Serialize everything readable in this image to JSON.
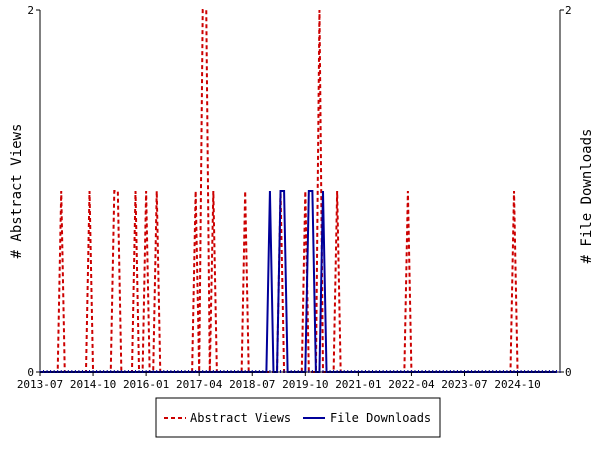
{
  "chart_data": {
    "type": "line",
    "title": "",
    "xlabel": "",
    "ylabel_left": "# Abstract Views",
    "ylabel_right": "# File Downloads",
    "x_range": [
      "2013-07",
      "2025-10"
    ],
    "ylim": [
      0,
      2
    ],
    "y_ticks": [
      "0",
      "2"
    ],
    "x_ticks": [
      "2013-07",
      "2014-10",
      "2016-01",
      "2017-04",
      "2018-07",
      "2019-10",
      "2021-01",
      "2022-04",
      "2023-07",
      "2024-10"
    ],
    "grid": false,
    "legend_position": "bottom",
    "colors": {
      "abstract_views": "#cc0000",
      "file_downloads": "#000099",
      "axis": "#000000"
    },
    "series": [
      {
        "name": "Abstract Views",
        "axis": "left",
        "points": [
          {
            "x": "2014-01",
            "y": 1
          },
          {
            "x": "2014-09",
            "y": 1
          },
          {
            "x": "2015-04",
            "y": 1
          },
          {
            "x": "2015-05",
            "y": 1
          },
          {
            "x": "2015-10",
            "y": 1
          },
          {
            "x": "2016-01",
            "y": 1
          },
          {
            "x": "2016-04",
            "y": 1
          },
          {
            "x": "2017-03",
            "y": 1
          },
          {
            "x": "2017-05",
            "y": 2
          },
          {
            "x": "2017-06",
            "y": 2
          },
          {
            "x": "2017-08",
            "y": 1
          },
          {
            "x": "2018-05",
            "y": 1
          },
          {
            "x": "2019-03",
            "y": 1
          },
          {
            "x": "2019-10",
            "y": 1
          },
          {
            "x": "2020-02",
            "y": 2
          },
          {
            "x": "2020-07",
            "y": 1
          },
          {
            "x": "2022-03",
            "y": 1
          },
          {
            "x": "2024-09",
            "y": 1
          }
        ]
      },
      {
        "name": "File Downloads",
        "axis": "right",
        "points": [
          {
            "x": "2018-12",
            "y": 1
          },
          {
            "x": "2019-03",
            "y": 1
          },
          {
            "x": "2019-04",
            "y": 1
          },
          {
            "x": "2019-11",
            "y": 1
          },
          {
            "x": "2019-12",
            "y": 1
          },
          {
            "x": "2020-03",
            "y": 1
          }
        ]
      }
    ]
  }
}
